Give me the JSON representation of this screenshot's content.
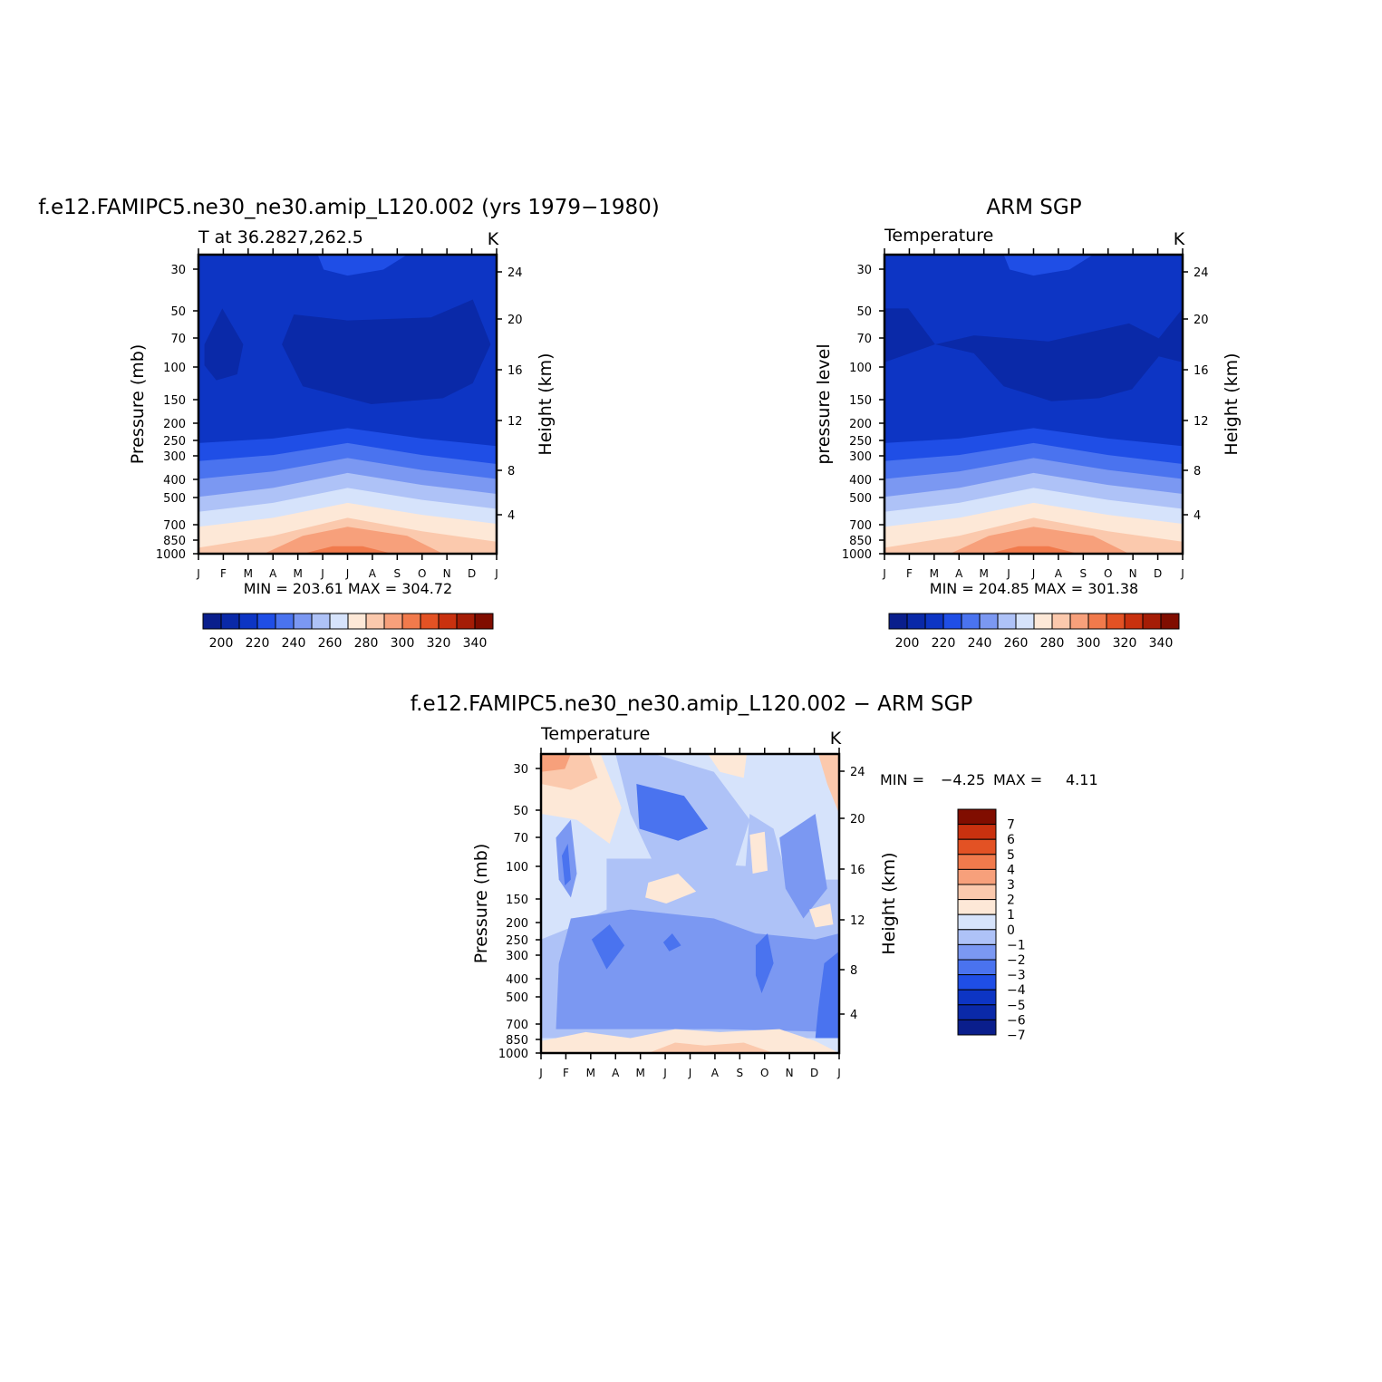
{
  "colors": {
    "scale_main": [
      "#0a1e8c",
      "#0a29a8",
      "#0d35c4",
      "#1f4ee6",
      "#4a73ef",
      "#7b98f2",
      "#aec2f7",
      "#d6e3fb",
      "#fde8d7",
      "#fbc9ad",
      "#f7a07b",
      "#f17a4c",
      "#e35224",
      "#c9310f",
      "#a51d06",
      "#800d00"
    ],
    "scale_diff": [
      "#0a1e8c",
      "#0a29a8",
      "#0d35c4",
      "#1f4ee6",
      "#4a73ef",
      "#7b98f2",
      "#aec2f7",
      "#d6e3fb",
      "#fde8d7",
      "#fbc9ad",
      "#f7a07b",
      "#f17a4c",
      "#e35224",
      "#c9310f",
      "#800d00"
    ]
  },
  "chart_data": [
    {
      "type": "heatmap",
      "title": "f.e12.FAMIPC5.ne30_ne30.amip_L120.002 (yrs 1979−1980)",
      "left_label": "T at 36.2827,262.5",
      "right_label": "K",
      "ylabel": "Pressure (mb)",
      "y2label": "Height (km)",
      "x_categories": [
        "J",
        "F",
        "M",
        "A",
        "M",
        "J",
        "J",
        "A",
        "S",
        "O",
        "N",
        "D",
        "J"
      ],
      "pressure_ticks": [
        "30",
        "50",
        "70",
        "100",
        "150",
        "200",
        "250",
        "300",
        "400",
        "500",
        "700",
        "850",
        "1000"
      ],
      "height_ticks": [
        "24",
        "20",
        "16",
        "12",
        "8",
        "4"
      ],
      "minmax": "MIN = 203.61 MAX = 304.72",
      "min": 203.61,
      "max": 304.72,
      "colorbar_labels": [
        "200",
        "220",
        "240",
        "260",
        "280",
        "300",
        "320",
        "340"
      ],
      "colorbar_levels": [
        195,
        200,
        205,
        210,
        215,
        220,
        225,
        230,
        235,
        240,
        245,
        250,
        255,
        260,
        265,
        270,
        275,
        280,
        285,
        290,
        295,
        300,
        305,
        310,
        315,
        320,
        325,
        330,
        335,
        340,
        345
      ]
    },
    {
      "type": "heatmap",
      "title": "ARM SGP",
      "left_label": "Temperature",
      "right_label": "K",
      "ylabel": "pressure level",
      "y2label": "Height (km)",
      "x_categories": [
        "J",
        "F",
        "M",
        "A",
        "M",
        "J",
        "J",
        "A",
        "S",
        "O",
        "N",
        "D",
        "J"
      ],
      "pressure_ticks": [
        "30",
        "50",
        "70",
        "100",
        "150",
        "200",
        "250",
        "300",
        "400",
        "500",
        "700",
        "850",
        "1000"
      ],
      "height_ticks": [
        "24",
        "20",
        "16",
        "12",
        "8",
        "4"
      ],
      "minmax": "MIN = 204.85 MAX = 301.38",
      "min": 204.85,
      "max": 301.38,
      "colorbar_labels": [
        "200",
        "220",
        "240",
        "260",
        "280",
        "300",
        "320",
        "340"
      ],
      "colorbar_levels": [
        195,
        200,
        205,
        210,
        215,
        220,
        225,
        230,
        235,
        240,
        245,
        250,
        255,
        260,
        265,
        270,
        275,
        280,
        285,
        290,
        295,
        300,
        305,
        310,
        315,
        320,
        325,
        330,
        335,
        340,
        345
      ]
    },
    {
      "type": "heatmap",
      "title": "f.e12.FAMIPC5.ne30_ne30.amip_L120.002 − ARM SGP",
      "left_label": "Temperature",
      "right_label": "K",
      "ylabel": "Pressure (mb)",
      "y2label": "Height (km)",
      "x_categories": [
        "J",
        "F",
        "M",
        "A",
        "M",
        "J",
        "J",
        "A",
        "S",
        "O",
        "N",
        "D",
        "J"
      ],
      "pressure_ticks": [
        "30",
        "50",
        "70",
        "100",
        "150",
        "200",
        "250",
        "300",
        "400",
        "500",
        "700",
        "850",
        "1000"
      ],
      "height_ticks": [
        "24",
        "20",
        "16",
        "12",
        "8",
        "4"
      ],
      "minmax_label": "MIN =",
      "minmax_min": "−4.25",
      "minmax_maxlabel": "MAX =",
      "minmax_max": "4.11",
      "min": -4.25,
      "max": 4.11,
      "colorbar_labels": [
        "7",
        "6",
        "5",
        "4",
        "3",
        "2",
        "1",
        "0",
        "−1",
        "−2",
        "−3",
        "−4",
        "−5",
        "−6",
        "−7"
      ]
    }
  ]
}
